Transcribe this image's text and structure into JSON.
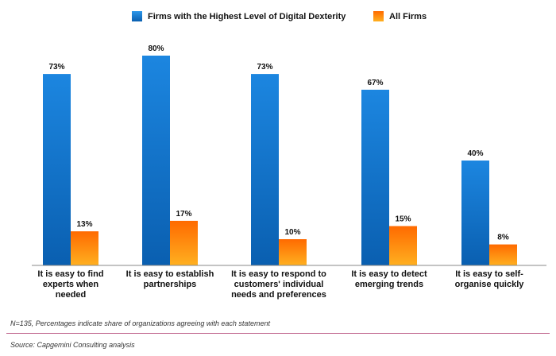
{
  "legend": {
    "series_a": "Firms with the Highest Level of Digital Dexterity",
    "series_b": "All Firms"
  },
  "footnote": "N=135, Percentages indicate share of organizations agreeing with each statement",
  "source": "Source: Capgemini Consulting analysis",
  "colors": {
    "series_a_top": "#1c86e0",
    "series_a_bottom": "#0a5fb0",
    "series_b_top": "#ff6a00",
    "series_b_bottom": "#ffb020",
    "axis": "#888888",
    "divider": "#c0678e"
  },
  "chart_data": {
    "type": "bar",
    "categories": [
      [
        "It is easy to find",
        "experts when",
        "needed"
      ],
      [
        "It is easy to establish",
        "partnerships"
      ],
      [
        "It is easy to respond to",
        "customers' individual",
        "needs and preferences"
      ],
      [
        "It is easy to detect",
        "emerging trends"
      ],
      [
        "It is easy to self-",
        "organise quickly"
      ]
    ],
    "series": [
      {
        "name": "Firms with the Highest Level of Digital Dexterity",
        "values": [
          73,
          80,
          73,
          67,
          40
        ],
        "labels": [
          "73%",
          "80%",
          "73%",
          "67%",
          "40%"
        ]
      },
      {
        "name": "All Firms",
        "values": [
          13,
          17,
          10,
          15,
          8
        ],
        "labels": [
          "13%",
          "17%",
          "10%",
          "15%",
          "8%"
        ]
      }
    ],
    "ylim": [
      0,
      100
    ],
    "grid": false,
    "legend_position": "top"
  }
}
